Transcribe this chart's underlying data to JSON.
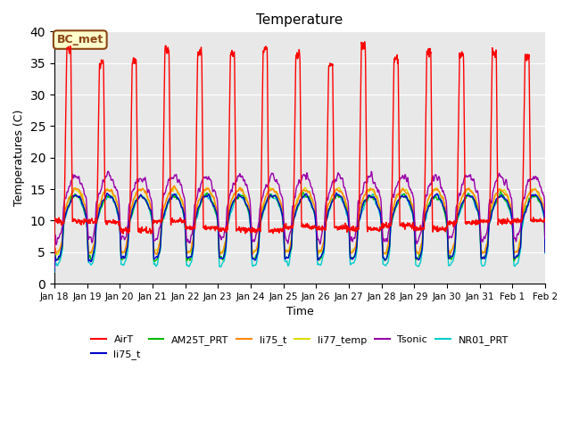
{
  "title": "Temperature",
  "xlabel": "Time",
  "ylabel": "Temperatures (C)",
  "ylim": [
    0,
    40
  ],
  "background_color": "#e8e8e8",
  "annotation_text": "BC_met",
  "annotation_bg": "#ffffcc",
  "annotation_border": "#8b4513",
  "series": {
    "AirT": {
      "color": "#ff0000",
      "lw": 1.0
    },
    "li75_t": {
      "color": "#0000cc",
      "lw": 1.0
    },
    "AM25T_PRT": {
      "color": "#00bb00",
      "lw": 1.0
    },
    "li75_t2": {
      "color": "#ff8800",
      "lw": 1.0
    },
    "li77_temp": {
      "color": "#dddd00",
      "lw": 1.0
    },
    "Tsonic": {
      "color": "#9900aa",
      "lw": 1.0
    },
    "NR01_PRT": {
      "color": "#00cccc",
      "lw": 1.0
    }
  },
  "x_tick_labels": [
    "Jan 18",
    "Jan 19",
    "Jan 20",
    "Jan 21",
    "Jan 22",
    "Jan 23",
    "Jan 24",
    "Jan 25",
    "Jan 26",
    "Jan 27",
    "Jan 28",
    "Jan 29",
    "Jan 30",
    "Jan 31",
    "Feb 1",
    "Feb 2"
  ],
  "n_days": 15,
  "pts_per_day": 144
}
